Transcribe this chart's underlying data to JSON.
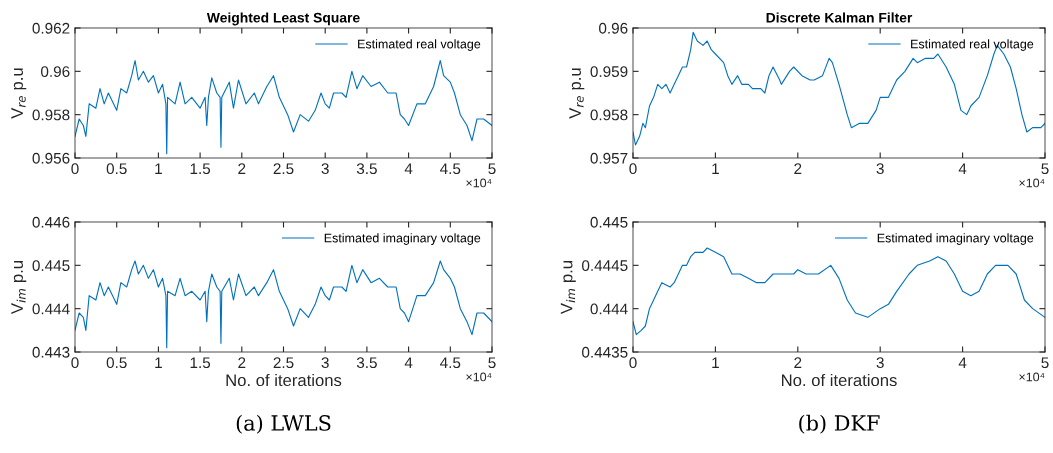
{
  "chart_data": [
    {
      "type": "line",
      "title": "Weighted Least Square",
      "ylabel": "V$_{re}$ p.u",
      "legend": "top right",
      "grid": false,
      "xlim": [
        0,
        5
      ],
      "xticks": [
        0,
        0.5,
        1,
        1.5,
        2,
        2.5,
        3,
        3.5,
        4,
        4.5,
        5
      ],
      "ylim": [
        0.956,
        0.962
      ],
      "yticks": [
        0.956,
        0.958,
        0.96,
        0.962
      ],
      "annotations": [
        "×10⁴"
      ],
      "x": [
        0,
        0.05,
        0.1,
        0.13,
        0.17,
        0.25,
        0.3,
        0.35,
        0.4,
        0.5,
        0.55,
        0.62,
        0.68,
        0.72,
        0.76,
        0.82,
        0.88,
        0.94,
        1.0,
        1.05,
        1.09,
        1.1,
        1.11,
        1.2,
        1.26,
        1.32,
        1.4,
        1.5,
        1.56,
        1.58,
        1.6,
        1.64,
        1.7,
        1.74,
        1.75,
        1.76,
        1.85,
        1.9,
        1.96,
        2.05,
        2.15,
        2.2,
        2.3,
        2.38,
        2.45,
        2.55,
        2.62,
        2.7,
        2.8,
        2.88,
        2.95,
        3.0,
        3.05,
        3.1,
        3.2,
        3.25,
        3.32,
        3.38,
        3.45,
        3.55,
        3.65,
        3.75,
        3.85,
        3.9,
        3.95,
        4.0,
        4.1,
        4.2,
        4.3,
        4.38,
        4.42,
        4.5,
        4.55,
        4.62,
        4.7,
        4.76,
        4.82,
        4.9,
        5.0
      ],
      "series": [
        {
          "name": "Estimated real voltage",
          "color": "#0072bd",
          "values": [
            0.957,
            0.9578,
            0.9575,
            0.957,
            0.9585,
            0.9583,
            0.9592,
            0.9585,
            0.959,
            0.9582,
            0.9592,
            0.959,
            0.9598,
            0.9605,
            0.9596,
            0.96,
            0.9595,
            0.9598,
            0.959,
            0.9594,
            0.9585,
            0.9562,
            0.9588,
            0.9585,
            0.9595,
            0.9585,
            0.9588,
            0.9583,
            0.9588,
            0.9575,
            0.9588,
            0.9597,
            0.959,
            0.9588,
            0.9565,
            0.9588,
            0.9595,
            0.9583,
            0.9596,
            0.9585,
            0.959,
            0.9585,
            0.9593,
            0.9598,
            0.9588,
            0.958,
            0.9572,
            0.958,
            0.9577,
            0.9582,
            0.959,
            0.9585,
            0.9583,
            0.959,
            0.959,
            0.9588,
            0.96,
            0.9592,
            0.9598,
            0.9593,
            0.9595,
            0.959,
            0.959,
            0.958,
            0.9578,
            0.9575,
            0.9585,
            0.9585,
            0.9593,
            0.9605,
            0.9598,
            0.9595,
            0.959,
            0.958,
            0.9575,
            0.9568,
            0.9578,
            0.9578,
            0.9575
          ]
        }
      ]
    },
    {
      "type": "line",
      "ylabel": "V$_{im}$ p.u",
      "xlabel": "No. of iterations",
      "legend": "top right",
      "grid": false,
      "xlim": [
        0,
        5
      ],
      "xticks": [
        0,
        0.5,
        1,
        1.5,
        2,
        2.5,
        3,
        3.5,
        4,
        4.5,
        5
      ],
      "ylim": [
        0.443,
        0.446
      ],
      "yticks": [
        0.443,
        0.444,
        0.445,
        0.446
      ],
      "annotations": [
        "×10⁴",
        "(a) LWLS"
      ],
      "x": [
        0,
        0.05,
        0.1,
        0.13,
        0.17,
        0.25,
        0.3,
        0.35,
        0.4,
        0.5,
        0.55,
        0.62,
        0.68,
        0.72,
        0.76,
        0.82,
        0.88,
        0.94,
        1.0,
        1.05,
        1.09,
        1.1,
        1.11,
        1.2,
        1.26,
        1.32,
        1.4,
        1.5,
        1.56,
        1.58,
        1.6,
        1.64,
        1.7,
        1.74,
        1.75,
        1.76,
        1.85,
        1.9,
        1.96,
        2.05,
        2.15,
        2.2,
        2.3,
        2.38,
        2.45,
        2.55,
        2.62,
        2.7,
        2.8,
        2.88,
        2.95,
        3.0,
        3.05,
        3.1,
        3.2,
        3.25,
        3.32,
        3.38,
        3.45,
        3.55,
        3.65,
        3.75,
        3.85,
        3.9,
        3.95,
        4.0,
        4.1,
        4.2,
        4.3,
        4.38,
        4.42,
        4.5,
        4.55,
        4.62,
        4.7,
        4.76,
        4.82,
        4.9,
        5.0
      ],
      "series": [
        {
          "name": "Estimated imaginary voltage",
          "color": "#0072bd",
          "values": [
            0.4435,
            0.4439,
            0.4438,
            0.4435,
            0.4443,
            0.4442,
            0.4446,
            0.4443,
            0.4445,
            0.4441,
            0.4446,
            0.4445,
            0.4449,
            0.4451,
            0.4448,
            0.445,
            0.4447,
            0.4449,
            0.4445,
            0.4447,
            0.4443,
            0.4431,
            0.4444,
            0.4443,
            0.4447,
            0.4443,
            0.4444,
            0.4442,
            0.4444,
            0.4437,
            0.4444,
            0.4448,
            0.4445,
            0.4444,
            0.4432,
            0.4444,
            0.4447,
            0.4442,
            0.4448,
            0.4443,
            0.4445,
            0.4443,
            0.4446,
            0.4449,
            0.4444,
            0.444,
            0.4436,
            0.444,
            0.4438,
            0.4441,
            0.4445,
            0.4443,
            0.4442,
            0.4445,
            0.4445,
            0.4444,
            0.445,
            0.4446,
            0.4449,
            0.4446,
            0.4447,
            0.4445,
            0.4445,
            0.444,
            0.4439,
            0.4437,
            0.4443,
            0.4443,
            0.4446,
            0.4451,
            0.4449,
            0.4447,
            0.4445,
            0.444,
            0.4437,
            0.4434,
            0.4439,
            0.4439,
            0.4437
          ]
        }
      ]
    },
    {
      "type": "line",
      "title": "Discrete Kalman Filter",
      "ylabel": "V$_{re}$ p.u",
      "legend": "top right",
      "grid": false,
      "xlim": [
        0,
        5
      ],
      "xticks": [
        0,
        1,
        2,
        3,
        4,
        5
      ],
      "ylim": [
        0.957,
        0.96
      ],
      "yticks": [
        0.957,
        0.958,
        0.959,
        0.96
      ],
      "annotations": [
        "×10⁴"
      ],
      "x": [
        0,
        0.03,
        0.08,
        0.12,
        0.15,
        0.2,
        0.25,
        0.3,
        0.35,
        0.4,
        0.45,
        0.5,
        0.55,
        0.6,
        0.65,
        0.7,
        0.73,
        0.78,
        0.85,
        0.9,
        0.95,
        1.0,
        1.1,
        1.15,
        1.2,
        1.27,
        1.32,
        1.4,
        1.45,
        1.55,
        1.6,
        1.65,
        1.7,
        1.78,
        1.8,
        1.9,
        1.95,
        2.05,
        2.15,
        2.2,
        2.3,
        2.38,
        2.42,
        2.5,
        2.6,
        2.65,
        2.75,
        2.85,
        2.95,
        3.0,
        3.1,
        3.2,
        3.3,
        3.4,
        3.45,
        3.55,
        3.65,
        3.7,
        3.8,
        3.9,
        3.98,
        4.05,
        4.1,
        4.2,
        4.3,
        4.38,
        4.42,
        4.5,
        4.58,
        4.65,
        4.72,
        4.78,
        4.85,
        4.95,
        5.0
      ],
      "series": [
        {
          "name": "Estimated real voltage",
          "color": "#0072bd",
          "values": [
            0.9576,
            0.9573,
            0.9575,
            0.9578,
            0.9577,
            0.9582,
            0.9584,
            0.9587,
            0.9586,
            0.9587,
            0.9585,
            0.9587,
            0.9589,
            0.9591,
            0.9591,
            0.9595,
            0.9599,
            0.9597,
            0.9596,
            0.9597,
            0.9595,
            0.9594,
            0.9592,
            0.9589,
            0.9587,
            0.9589,
            0.9587,
            0.9587,
            0.9586,
            0.9586,
            0.9585,
            0.9589,
            0.9591,
            0.9588,
            0.9587,
            0.959,
            0.9591,
            0.9589,
            0.9588,
            0.9588,
            0.9589,
            0.9593,
            0.9592,
            0.9587,
            0.958,
            0.9577,
            0.9578,
            0.9578,
            0.9581,
            0.9584,
            0.9584,
            0.9588,
            0.959,
            0.9593,
            0.9592,
            0.9593,
            0.9593,
            0.9594,
            0.9591,
            0.9587,
            0.9581,
            0.958,
            0.9582,
            0.9584,
            0.9589,
            0.9594,
            0.9596,
            0.9594,
            0.9591,
            0.9586,
            0.958,
            0.9576,
            0.9577,
            0.9577,
            0.9578
          ]
        }
      ]
    },
    {
      "type": "line",
      "ylabel": "V$_{im}$ p.u",
      "xlabel": "No. of iterations",
      "legend": "top right",
      "grid": false,
      "xlim": [
        0,
        5
      ],
      "xticks": [
        0,
        1,
        2,
        3,
        4,
        5
      ],
      "ylim": [
        0.4435,
        0.445
      ],
      "yticks": [
        0.4435,
        0.444,
        0.4445,
        0.445
      ],
      "annotations": [
        "×10⁴",
        "(b) DKF"
      ],
      "x": [
        0,
        0.04,
        0.1,
        0.15,
        0.2,
        0.3,
        0.35,
        0.45,
        0.5,
        0.6,
        0.65,
        0.7,
        0.75,
        0.85,
        0.9,
        1.0,
        1.1,
        1.2,
        1.3,
        1.4,
        1.5,
        1.6,
        1.7,
        1.8,
        1.95,
        2.0,
        2.1,
        2.25,
        2.4,
        2.5,
        2.6,
        2.7,
        2.85,
        3.0,
        3.1,
        3.2,
        3.35,
        3.45,
        3.6,
        3.7,
        3.8,
        3.9,
        4.0,
        4.1,
        4.2,
        4.3,
        4.4,
        4.55,
        4.65,
        4.75,
        4.85,
        5.0
      ],
      "series": [
        {
          "name": "Estimated imaginary voltage",
          "color": "#0072bd",
          "values": [
            0.44385,
            0.4437,
            0.44375,
            0.4438,
            0.444,
            0.4442,
            0.4443,
            0.44425,
            0.4443,
            0.4445,
            0.4445,
            0.4446,
            0.44465,
            0.44465,
            0.4447,
            0.44465,
            0.4446,
            0.4444,
            0.4444,
            0.44435,
            0.4443,
            0.4443,
            0.4444,
            0.4444,
            0.4444,
            0.44445,
            0.4444,
            0.4444,
            0.4445,
            0.44435,
            0.4441,
            0.44395,
            0.4439,
            0.444,
            0.44405,
            0.4442,
            0.4444,
            0.4445,
            0.44455,
            0.4446,
            0.44455,
            0.4444,
            0.4442,
            0.44415,
            0.4442,
            0.4444,
            0.4445,
            0.4445,
            0.4444,
            0.4441,
            0.444,
            0.4439
          ]
        }
      ]
    }
  ]
}
